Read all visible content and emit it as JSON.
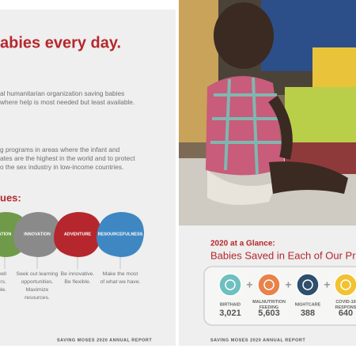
{
  "left_page": {
    "heading": "abies every day.",
    "paragraph_1": [
      "al humanitarian organization saving babies",
      "where help is most needed but least available."
    ],
    "paragraph_2": [
      "g programs in areas where the infant and",
      "ates are the highest in the world and to protect",
      "o the sex industry in low-income countries."
    ],
    "values_heading": "ues:",
    "values": [
      {
        "name": "ATION",
        "description": [
          "well",
          "ers.",
          "ble."
        ]
      },
      {
        "name": "INNOVATION",
        "description": [
          "Seek out learning",
          "opportunities.",
          "Maximize",
          "resources."
        ]
      },
      {
        "name": "ADVENTURE",
        "description": [
          "Be innovative.",
          "Be flexible."
        ]
      },
      {
        "name": "RESOURCEFULNESS",
        "description": [
          "Make the most",
          "of what we have."
        ]
      }
    ],
    "footer": "SAVING MOSES 2020 ANNUAL REPORT"
  },
  "right_page": {
    "kicker": "2020 at a Glance:",
    "title": "Babies Saved in Each of Our Pr",
    "programs": [
      {
        "name": [
          "BIRTHAID"
        ],
        "count": "3,021"
      },
      {
        "name": [
          "MALNUTRITION",
          "FEEDING"
        ],
        "count": "5,603"
      },
      {
        "name": [
          "NIGHTCARE"
        ],
        "count": "388"
      },
      {
        "name": [
          "COVID-19",
          "RESPONS"
        ],
        "count": "640"
      }
    ],
    "footer": "SAVING MOSES 2020 ANNUAL REPORT"
  }
}
